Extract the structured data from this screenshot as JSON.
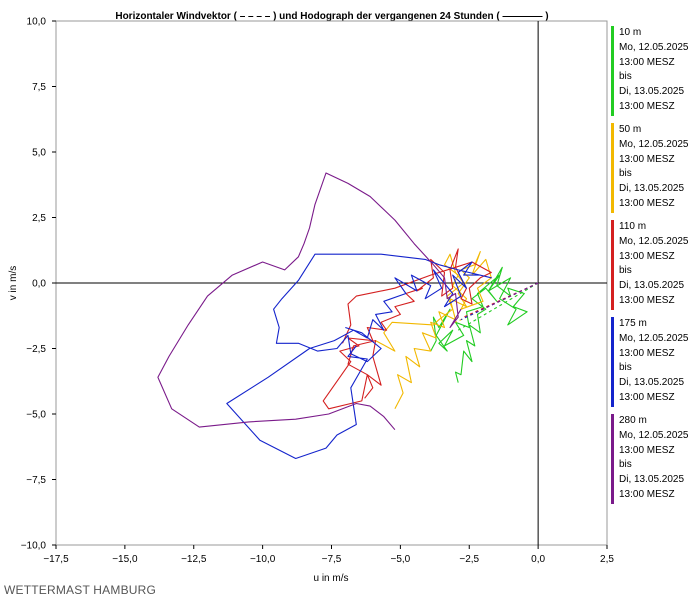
{
  "chart_data": {
    "type": "line",
    "title": "Horizontaler Windvektor ( – – – – ) und Hodograph der vergangenen 24 Stunden ( ———— )",
    "xlabel": "u in m/s",
    "ylabel": "v in m/s",
    "xlim": [
      -17.5,
      2.5
    ],
    "ylim": [
      -10.0,
      10.0
    ],
    "x_ticks": [
      "−17,5",
      "−15,0",
      "−12,5",
      "−10,0",
      "−7,5",
      "−5,0",
      "−2,5",
      "0,0",
      "2,5"
    ],
    "y_ticks": [
      "10,0",
      "7,5",
      "5,0",
      "2,5",
      "0,0",
      "−2,5",
      "−5,0",
      "−7,5",
      "−10,0"
    ],
    "grid": false,
    "legend_position": "right",
    "series": [
      {
        "name": "10 m",
        "color": "#22cc22",
        "period": [
          "10 m",
          "Mo, 12.05.2025",
          "13:00 MESZ",
          "bis",
          "Di, 13.05.2025",
          "13:00 MESZ"
        ],
        "x": [
          -2.9,
          -3.0,
          -2.8,
          -2.7,
          -2.4,
          -2.6,
          -2.3,
          -2.5,
          -2.1,
          -2.2,
          -1.9,
          -2.4,
          -1.9,
          -1.5,
          -1.8,
          -1.3,
          -1.5,
          -1.0,
          -1.1,
          -0.5,
          -0.9,
          -0.4,
          -1.1,
          -0.8,
          -1.4,
          -1.0,
          -1.8,
          -1.4,
          -2.2,
          -2.0,
          -2.6,
          -2.5,
          -3.0,
          -2.7,
          -3.4,
          -3.1,
          -3.6,
          -3.3,
          -3.7,
          -3.4,
          -3.2,
          -3.6,
          -3.8,
          -3.7,
          -3.9
        ],
        "y": [
          -3.8,
          -3.4,
          -3.5,
          -2.6,
          -3.0,
          -2.2,
          -2.4,
          -1.6,
          -1.9,
          -1.2,
          -1.0,
          -0.6,
          -0.2,
          -0.7,
          -0.3,
          0.6,
          -0.1,
          -0.5,
          -0.2,
          -0.4,
          -0.9,
          -1.1,
          -1.6,
          -1.0,
          -0.6,
          0.2,
          -0.3,
          0.3,
          -0.4,
          -0.9,
          -1.1,
          -1.7,
          -1.5,
          -2.0,
          -2.4,
          -1.8,
          -2.3,
          -2.6,
          -2.0,
          -1.4,
          -1.0,
          -1.7,
          -1.3,
          -2.2,
          -2.6
        ]
      },
      {
        "name": "50 m",
        "color": "#f2b800",
        "period": [
          "50 m",
          "Mo, 12.05.2025",
          "13:00 MESZ",
          "bis",
          "Di, 13.05.2025",
          "13:00 MESZ"
        ],
        "x": [
          -5.2,
          -4.9,
          -5.1,
          -4.6,
          -4.8,
          -4.3,
          -4.5,
          -3.9,
          -4.2,
          -3.7,
          -3.9,
          -3.4,
          -3.6,
          -3.0,
          -3.2,
          -2.6,
          -2.9,
          -2.5,
          -2.8,
          -2.3,
          -2.1,
          -2.4,
          -1.9,
          -1.7,
          -2.2,
          -2.0,
          -2.8,
          -2.6,
          -3.1,
          -2.9,
          -3.4,
          -3.2,
          -3.0,
          -2.7,
          -3.3,
          -3.1,
          -3.6,
          -3.8,
          -5.3,
          -5.6,
          -5.2,
          -5.9
        ],
        "y": [
          -4.8,
          -4.2,
          -3.5,
          -3.8,
          -2.8,
          -3.2,
          -2.5,
          -2.6,
          -1.9,
          -2.1,
          -1.5,
          -1.7,
          -1.1,
          -1.4,
          -0.6,
          -0.9,
          -0.4,
          0.2,
          0.5,
          0.7,
          1.2,
          0.3,
          0.9,
          0.2,
          -0.2,
          -0.7,
          -1.0,
          -0.6,
          -0.1,
          0.3,
          0.7,
          1.1,
          0.4,
          0.0,
          -0.5,
          -1.0,
          -1.4,
          -1.6,
          -1.5,
          -1.9,
          -2.6,
          -2.2
        ]
      },
      {
        "name": "110 m",
        "color": "#d42020",
        "period": [
          "110 m",
          "Mo, 12.05.2025",
          "13:00 MESZ",
          "bis",
          "Di, 13.05.2025",
          "13:00 MESZ"
        ],
        "x": [
          -6.3,
          -6.0,
          -6.2,
          -5.7,
          -6.0,
          -5.9,
          -6.7,
          -6.9,
          -6.2,
          -6.4,
          -7.6,
          -7.8,
          -7.2,
          -6.8,
          -7.2,
          -6.5,
          -6.9,
          -6.0,
          -6.2,
          -5.5,
          -5.7,
          -5.0,
          -5.2,
          -4.5,
          -4.8,
          -4.2,
          -4.4,
          -3.8,
          -3.9,
          -3.4,
          -3.5,
          -3.1,
          -3.2,
          -2.9,
          -3.0,
          -2.6,
          -2.8,
          -2.4,
          -2.5,
          -2.1,
          -1.7,
          -2.4,
          -3.0,
          -3.9,
          -5.2,
          -6.6,
          -6.9,
          -6.8,
          -7.1
        ],
        "y": [
          -4.4,
          -4.0,
          -3.5,
          -3.9,
          -2.8,
          -2.2,
          -2.4,
          -3.1,
          -3.5,
          -4.5,
          -4.8,
          -4.5,
          -3.6,
          -3.0,
          -2.6,
          -2.4,
          -2.1,
          -2.2,
          -1.7,
          -1.8,
          -1.5,
          -1.2,
          -0.9,
          -0.7,
          -0.4,
          -0.2,
          -0.3,
          0.2,
          0.9,
          0.4,
          -0.5,
          -0.2,
          0.5,
          1.3,
          0.6,
          -0.2,
          -0.6,
          -0.8,
          -0.2,
          0.2,
          0.4,
          0.8,
          0.6,
          0.3,
          -0.2,
          -0.5,
          -0.8,
          -1.6,
          -2.3
        ]
      },
      {
        "name": "175 m",
        "color": "#1424cc",
        "period": [
          "175 m",
          "Mo, 12.05.2025",
          "13:00 MESZ",
          "bis",
          "Di, 13.05.2025",
          "13:00 MESZ"
        ],
        "x": [
          -6.6,
          -6.9,
          -6.2,
          -6.8,
          -6.6,
          -7.3,
          -7.7,
          -8.8,
          -10.1,
          -11.3,
          -9.8,
          -8.3,
          -7.4,
          -6.7,
          -6.2,
          -6.0,
          -5.6,
          -5.9,
          -5.3,
          -5.6,
          -4.8,
          -5.2,
          -4.4,
          -4.6,
          -3.9,
          -4.1,
          -3.5,
          -3.8,
          -3.1,
          -3.4,
          -2.8,
          -3.1,
          -2.6,
          -2.9,
          -2.4,
          -2.7,
          -2.1,
          -1.7,
          -2.9,
          -3.6,
          -4.1,
          -4.9,
          -5.7,
          -6.6,
          -7.6,
          -8.1,
          -8.7,
          -9.3,
          -9.6,
          -9.4,
          -9.5,
          -8.7,
          -8.0,
          -7.3,
          -6.9,
          -6.8,
          -6.2,
          -5.7,
          -6.4,
          -7.0
        ],
        "y": [
          -2.4,
          -2.8,
          -2.9,
          -4.0,
          -5.4,
          -5.8,
          -6.3,
          -6.7,
          -6.0,
          -4.6,
          -3.6,
          -2.5,
          -2.2,
          -1.8,
          -2.1,
          -1.4,
          -1.8,
          -1.2,
          -1.1,
          -0.7,
          -0.4,
          0.2,
          -0.3,
          0.3,
          -0.1,
          -0.6,
          -0.2,
          0.5,
          -0.4,
          -0.9,
          -0.5,
          0.3,
          -0.2,
          0.4,
          0.8,
          0.3,
          0.3,
          0.2,
          0.5,
          0.7,
          0.9,
          1.0,
          1.1,
          1.1,
          1.1,
          1.1,
          0.1,
          -0.6,
          -1.0,
          -1.7,
          -2.3,
          -2.3,
          -2.6,
          -2.5,
          -2.0,
          -2.7,
          -3.0,
          -2.5,
          -1.9,
          -1.7
        ]
      },
      {
        "name": "280 m",
        "color": "#7a1a8a",
        "period": [
          "280 m",
          "Mo, 12.05.2025",
          "13:00 MESZ",
          "bis",
          "Di, 13.05.2025",
          "13:00 MESZ"
        ],
        "x": [
          -5.2,
          -5.6,
          -6.1,
          -6.6,
          -7.6,
          -8.8,
          -10.5,
          -12.3,
          -13.3,
          -13.8,
          -13.4,
          -12.7,
          -12.0,
          -11.1,
          -10.0,
          -9.2,
          -8.7,
          -8.5,
          -8.3,
          -8.1,
          -7.7,
          -6.9,
          -6.1,
          -5.2,
          -4.5,
          -3.8,
          -3.4,
          -3.3,
          -3.0,
          -2.9,
          -3.2,
          -2.8
        ],
        "y": [
          -5.6,
          -5.1,
          -4.7,
          -4.6,
          -5.0,
          -5.2,
          -5.3,
          -5.5,
          -4.8,
          -3.6,
          -2.8,
          -1.6,
          -0.5,
          0.3,
          0.8,
          0.5,
          1.0,
          1.5,
          2.1,
          3.0,
          4.2,
          3.8,
          3.3,
          2.4,
          1.5,
          0.7,
          0.2,
          -0.6,
          -0.4,
          -1.3,
          -1.7,
          -1.0
        ]
      }
    ],
    "vectors": [
      {
        "name": "10 m",
        "color": "#22cc22",
        "u": -2.9,
        "v": -1.8
      },
      {
        "name": "50 m",
        "color": "#f2b800",
        "u": -3.0,
        "v": -1.5
      },
      {
        "name": "110 m",
        "color": "#d42020",
        "u": -2.7,
        "v": -1.3
      },
      {
        "name": "175 m",
        "color": "#1424cc",
        "u": -2.8,
        "v": -1.4
      },
      {
        "name": "280 m",
        "color": "#7a1a8a",
        "u": -2.2,
        "v": -1.1
      }
    ]
  },
  "brand": "WETTERMAST HAMBURG"
}
